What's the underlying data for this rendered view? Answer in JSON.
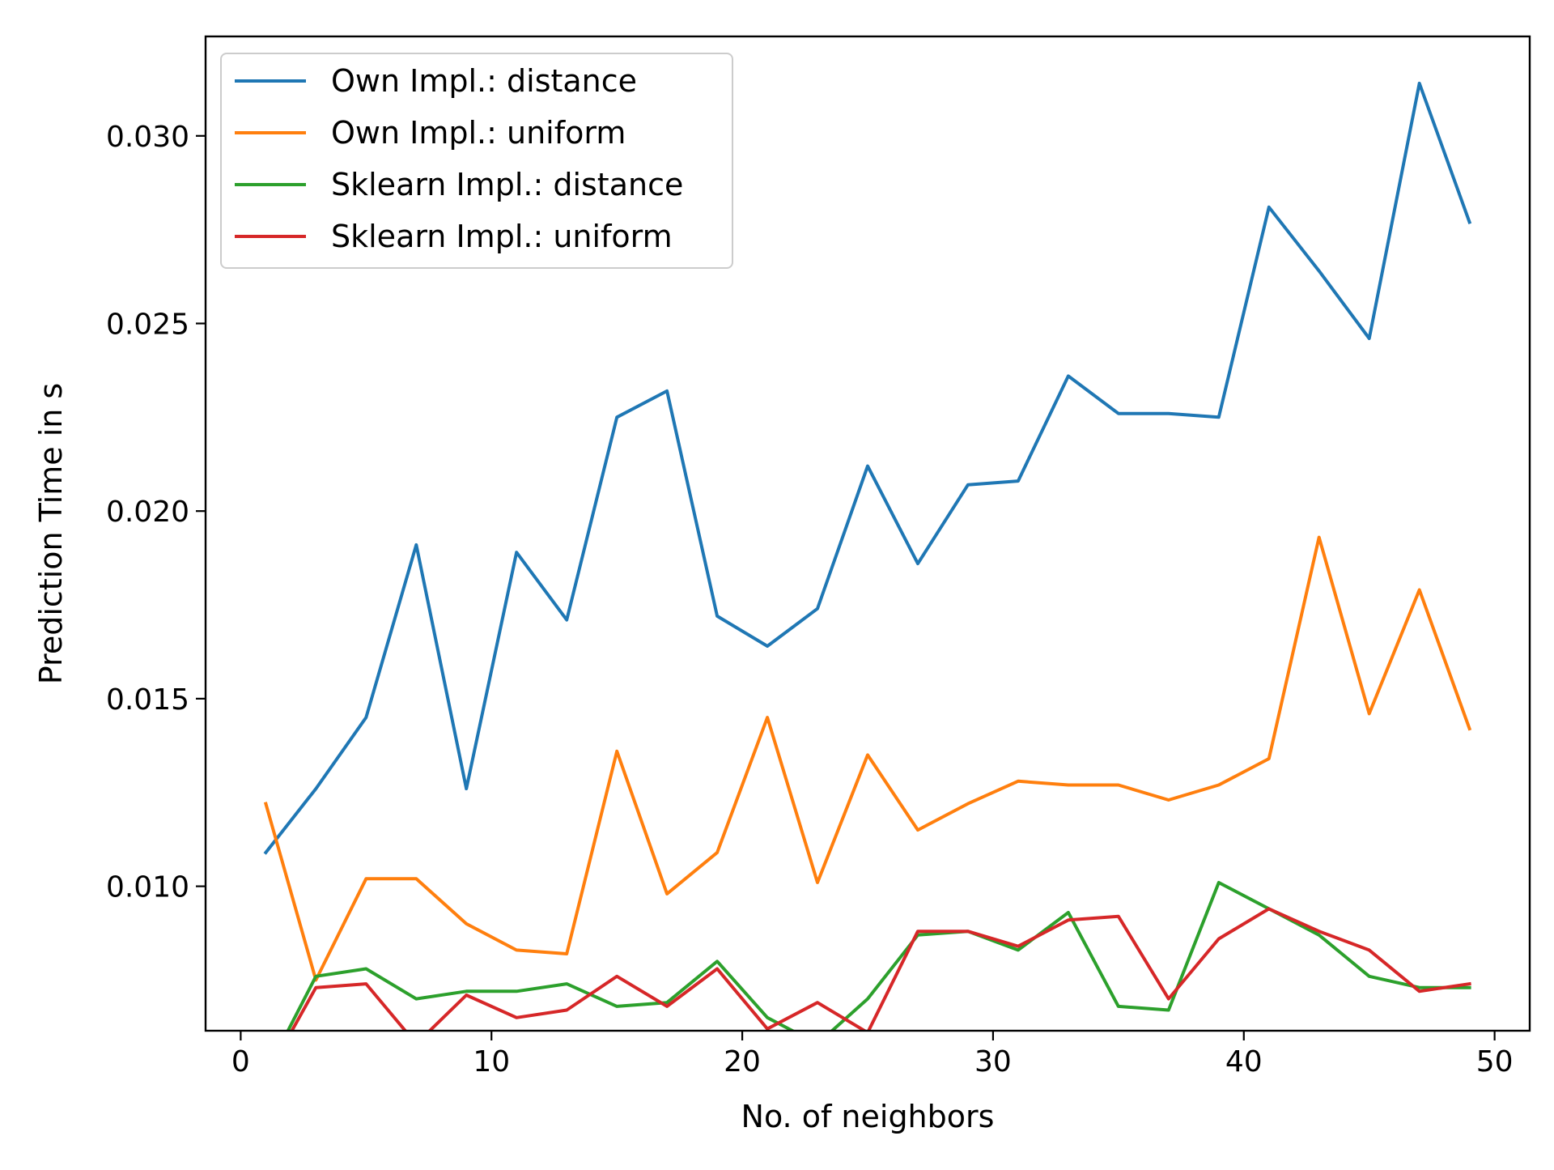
{
  "chart_data": {
    "type": "line",
    "xlabel": "No. of neighbors",
    "ylabel": "Prediction Time in s",
    "xlim": [
      -1.4,
      51.4
    ],
    "ylim": [
      0.00615,
      0.03265
    ],
    "xticks": [
      0,
      10,
      20,
      30,
      40,
      50
    ],
    "xtick_labels": [
      "0",
      "10",
      "20",
      "30",
      "40",
      "50"
    ],
    "yticks": [
      0.01,
      0.015,
      0.02,
      0.025,
      0.03
    ],
    "ytick_labels": [
      "0.010",
      "0.015",
      "0.020",
      "0.025",
      "0.030"
    ],
    "grid": false,
    "legend_position": "top-left",
    "x": [
      1,
      3,
      5,
      7,
      9,
      11,
      13,
      15,
      17,
      19,
      21,
      23,
      25,
      27,
      29,
      31,
      33,
      35,
      37,
      39,
      41,
      43,
      45,
      47,
      49
    ],
    "series": [
      {
        "name": "Own Impl.: distance",
        "color": "#1f77b4",
        "values": [
          0.0109,
          0.0126,
          0.0145,
          0.0191,
          0.0126,
          0.0189,
          0.0171,
          0.0225,
          0.0232,
          0.0172,
          0.0164,
          0.0174,
          0.0212,
          0.0186,
          0.0207,
          0.0208,
          0.0236,
          0.0226,
          0.0226,
          0.0225,
          0.0281,
          0.0264,
          0.0246,
          0.0314,
          0.0277
        ]
      },
      {
        "name": "Own Impl.: uniform",
        "color": "#ff7f0e",
        "values": [
          0.0122,
          0.0075,
          0.0102,
          0.0102,
          0.009,
          0.0083,
          0.0082,
          0.0136,
          0.0098,
          0.0109,
          0.0145,
          0.0101,
          0.0135,
          0.0115,
          0.0122,
          0.0128,
          0.0127,
          0.0127,
          0.0123,
          0.0127,
          0.0134,
          0.0193,
          0.0146,
          0.0179,
          0.0142
        ]
      },
      {
        "name": "Sklearn Impl.: distance",
        "color": "#2ca02c",
        "values": [
          0.005,
          0.0076,
          0.0078,
          0.007,
          0.0072,
          0.0072,
          0.0074,
          0.0068,
          0.0069,
          0.008,
          0.0065,
          0.0058,
          0.007,
          0.0087,
          0.0088,
          0.0083,
          0.0093,
          0.0068,
          0.0067,
          0.0101,
          0.0094,
          0.0087,
          0.0076,
          0.0073,
          0.0073
        ]
      },
      {
        "name": "Sklearn Impl.: uniform",
        "color": "#d62728",
        "values": [
          0.0049,
          0.0073,
          0.0074,
          0.0058,
          0.0071,
          0.0065,
          0.0067,
          0.0076,
          0.0068,
          0.0078,
          0.0062,
          0.0069,
          0.0061,
          0.0088,
          0.0088,
          0.0084,
          0.0091,
          0.0092,
          0.007,
          0.0086,
          0.0094,
          0.0088,
          0.0083,
          0.0072,
          0.0074
        ]
      }
    ]
  }
}
